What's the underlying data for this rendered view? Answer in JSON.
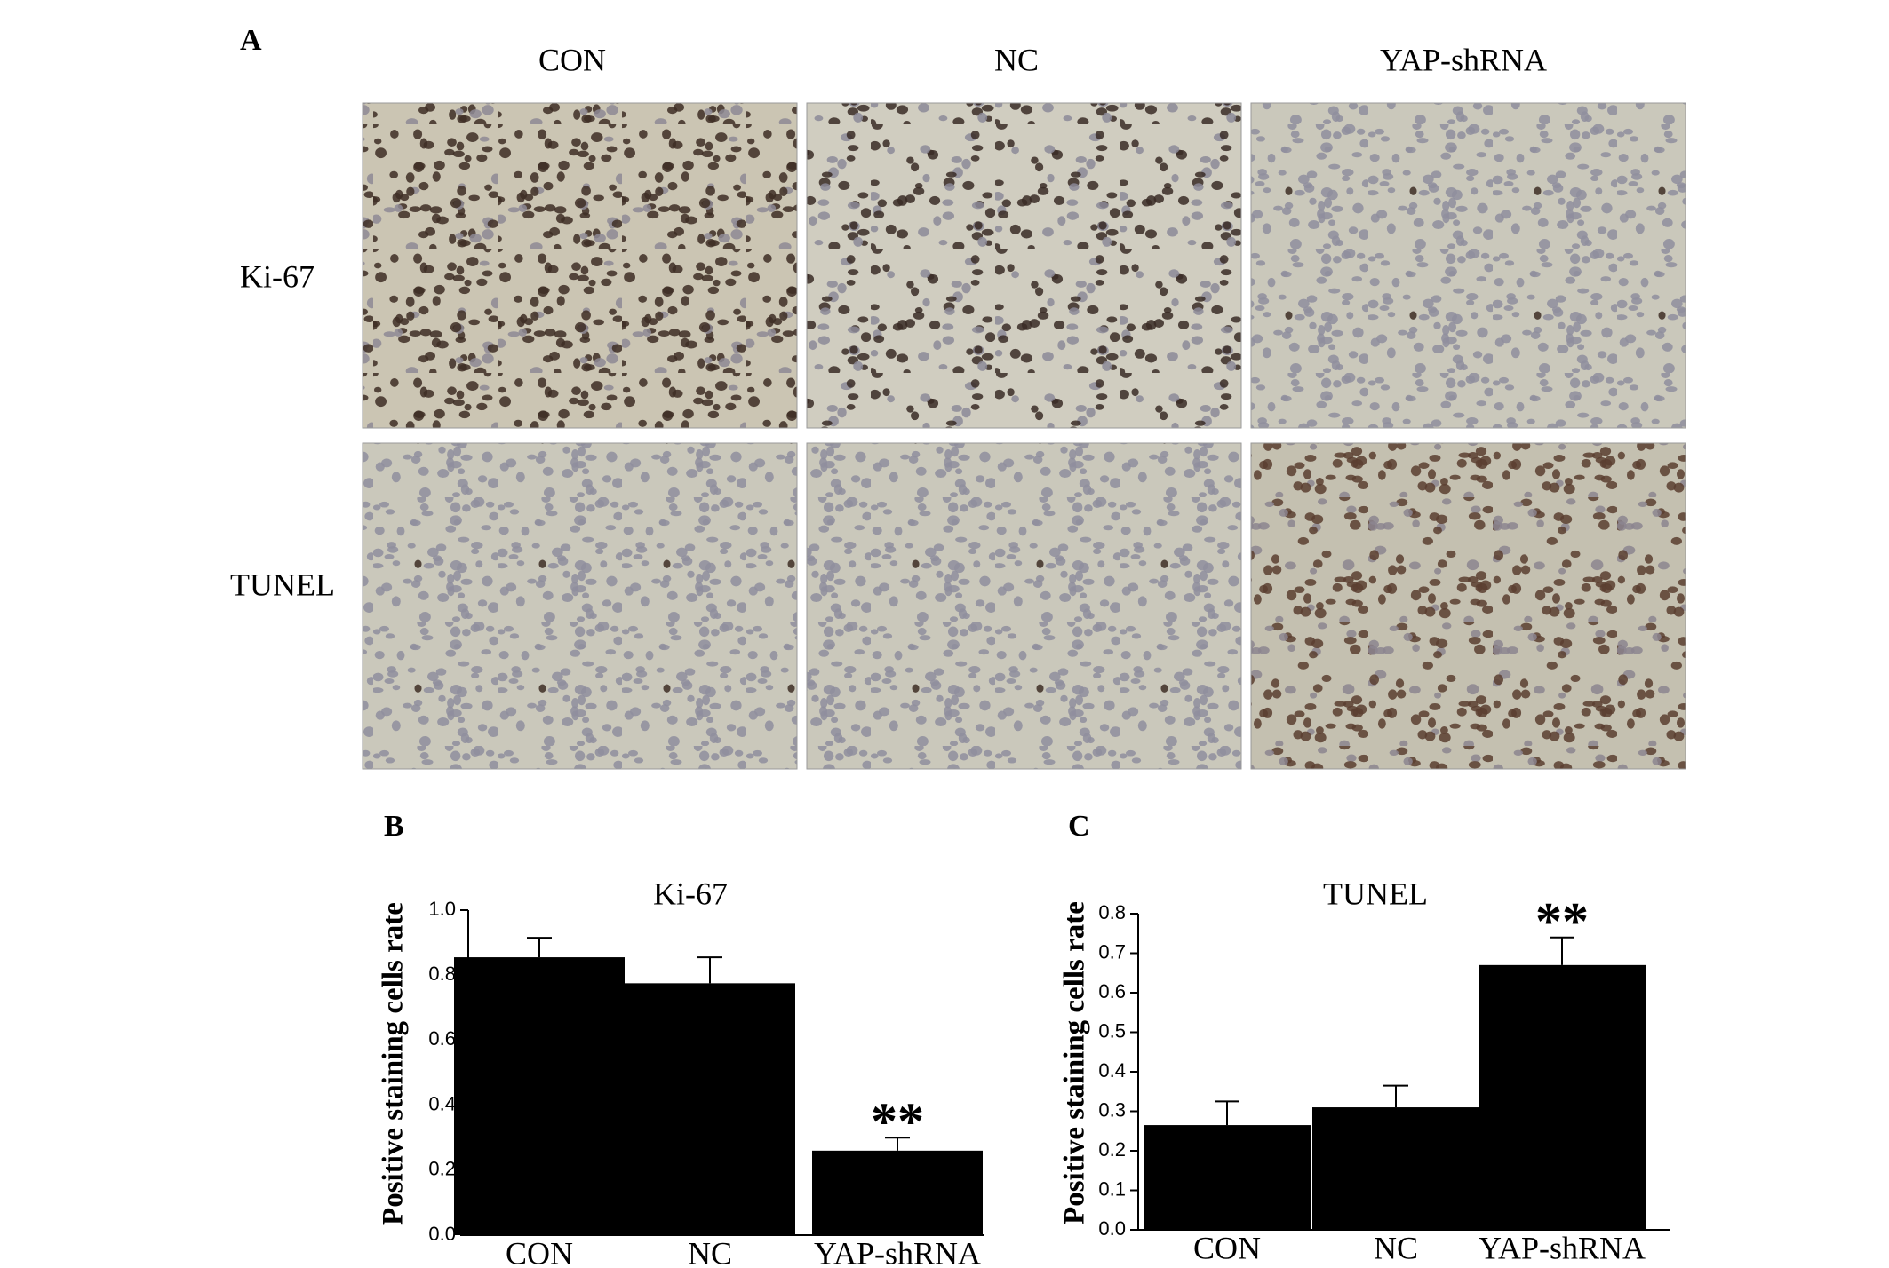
{
  "panel_a": {
    "label": "A",
    "columns": [
      "CON",
      "NC",
      "YAP-shRNA"
    ],
    "rows": [
      "Ki-67",
      "TUNEL"
    ]
  },
  "chart_data": [
    {
      "type": "bar",
      "panel": "B",
      "title": "Ki-67",
      "y_label": "Positive staining cells rate",
      "categories": [
        "CON",
        "NC",
        "YAP-shRNA"
      ],
      "values": [
        0.855,
        0.775,
        0.26
      ],
      "errors": [
        0.06,
        0.08,
        0.04
      ],
      "color": "#000000",
      "ylim": [
        0,
        1.0
      ],
      "yticks": [
        {
          "value": 0,
          "label": "0.0"
        },
        0.2,
        0.4,
        0.6,
        0.8,
        {
          "value": 1,
          "label": "1.0"
        }
      ],
      "annotation": "**"
    },
    {
      "type": "bar",
      "panel": "C",
      "title": "TUNEL",
      "y_label": "Positive staining cells rate",
      "categories": [
        "CON",
        "NC",
        "YAP-shRNA"
      ],
      "values": [
        0.265,
        0.31,
        0.67
      ],
      "errors": [
        0.06,
        0.055,
        0.07
      ],
      "color": "#000000",
      "ylim": [
        0,
        0.8
      ],
      "yticks": [
        {
          "value": 0,
          "label": "0.0"
        },
        0.1,
        0.2,
        0.3,
        0.4,
        0.5,
        0.6,
        0.7,
        0.8
      ],
      "annotation": "**"
    }
  ]
}
